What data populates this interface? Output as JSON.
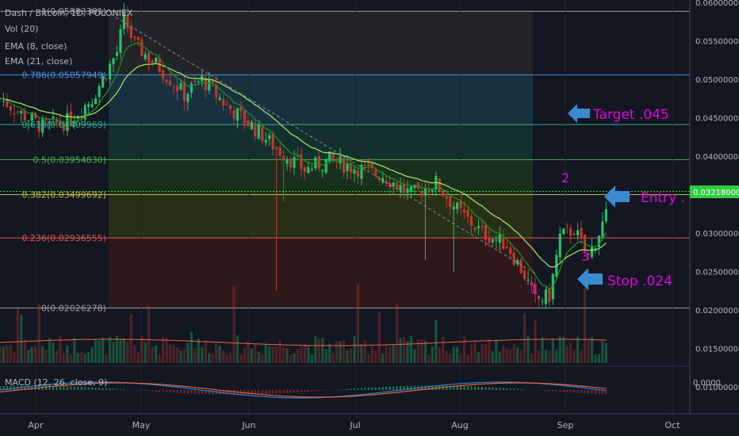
{
  "header": {
    "symbol": "Dash / Bitcoin, 1D, POLONIEX",
    "indicators": [
      "Vol (20)",
      "EMA (8, close)",
      "EMA (21, close)"
    ],
    "macd_label": "MACD (12, 26, close, 9)"
  },
  "current_price": "0.03218000",
  "macd_zero": "0.0000",
  "annotations": {
    "target": "Target .045",
    "entry": "Entry .",
    "stop": "Stop .024",
    "wave1": "1",
    "wave2": "2",
    "wave3": "3"
  },
  "colors": {
    "background": "#131722",
    "up": "#26c06a",
    "down": "#c0392b",
    "ema_fast": "#1e8f1e",
    "ema_slow": "#9be15d",
    "annotation": "#e600e6",
    "arrow": "#3a8ad0",
    "current_price_line": "#2ecc40",
    "macd_line": "#2f7fd6",
    "signal_line": "#e8643a"
  },
  "chart_data": {
    "type": "candlestick",
    "title": "Dash / Bitcoin, 1D, POLONIEX",
    "price_axis": {
      "ticks": [
        "0.06000000",
        "0.05500000",
        "0.05000000",
        "0.04500000",
        "0.04000000",
        "0.03500000",
        "0.03000000",
        "0.02500000",
        "0.02000000",
        "0.01500000",
        "0.01000000"
      ],
      "range": [
        0.0065,
        0.0603
      ],
      "scale": "linear"
    },
    "time_axis": {
      "ticks": [
        "Apr",
        "May",
        "Jun",
        "Jul",
        "Aug",
        "Sep",
        "Oct"
      ]
    },
    "fibonacci": [
      {
        "label": "1(0.05883381)",
        "level": 0.05883381,
        "color": "#9e9e9e"
      },
      {
        "label": "0.786(0.05057949)",
        "level": 0.05057949,
        "color": "#4a90d9"
      },
      {
        "label": "0.618(0.04409969)",
        "level": 0.04409969,
        "color": "#2eae8f"
      },
      {
        "label": "0.5(0.03954830)",
        "level": 0.0395483,
        "color": "#4caf50"
      },
      {
        "label": "0.382(0.03499692)",
        "level": 0.03499692,
        "color": "#b8c43a"
      },
      {
        "label": "0.236(0.02936555)",
        "level": 0.02936555,
        "color": "#e0524e"
      },
      {
        "label": "0(0.02026278)",
        "level": 0.02026278,
        "color": "#9e9e9e"
      }
    ],
    "price_path": [
      {
        "date": "2017-03-24",
        "close": 0.0475
      },
      {
        "date": "2017-03-30",
        "close": 0.0455
      },
      {
        "date": "2017-04-05",
        "close": 0.0438
      },
      {
        "date": "2017-04-12",
        "close": 0.0445
      },
      {
        "date": "2017-04-19",
        "close": 0.0475
      },
      {
        "date": "2017-04-26",
        "close": 0.0535
      },
      {
        "date": "2017-04-28",
        "close": 0.0578
      },
      {
        "date": "2017-05-01",
        "close": 0.0545
      },
      {
        "date": "2017-05-08",
        "close": 0.0515
      },
      {
        "date": "2017-05-15",
        "close": 0.048
      },
      {
        "date": "2017-05-20",
        "close": 0.05
      },
      {
        "date": "2017-05-27",
        "close": 0.0465
      },
      {
        "date": "2017-06-03",
        "close": 0.044
      },
      {
        "date": "2017-06-10",
        "close": 0.041
      },
      {
        "date": "2017-06-18",
        "close": 0.0382
      },
      {
        "date": "2017-06-25",
        "close": 0.0395
      },
      {
        "date": "2017-07-02",
        "close": 0.0385
      },
      {
        "date": "2017-07-10",
        "close": 0.0375
      },
      {
        "date": "2017-07-18",
        "close": 0.035
      },
      {
        "date": "2017-07-25",
        "close": 0.0365
      },
      {
        "date": "2017-07-31",
        "close": 0.033
      },
      {
        "date": "2017-08-07",
        "close": 0.03
      },
      {
        "date": "2017-08-14",
        "close": 0.0285
      },
      {
        "date": "2017-08-19",
        "close": 0.0245
      },
      {
        "date": "2017-08-22",
        "close": 0.0212
      },
      {
        "date": "2017-08-26",
        "close": 0.0218
      },
      {
        "date": "2017-08-29",
        "close": 0.0295
      },
      {
        "date": "2017-09-02",
        "close": 0.0305
      },
      {
        "date": "2017-09-06",
        "close": 0.0268
      },
      {
        "date": "2017-09-11",
        "close": 0.0322
      }
    ],
    "legend_position": "top-left"
  }
}
